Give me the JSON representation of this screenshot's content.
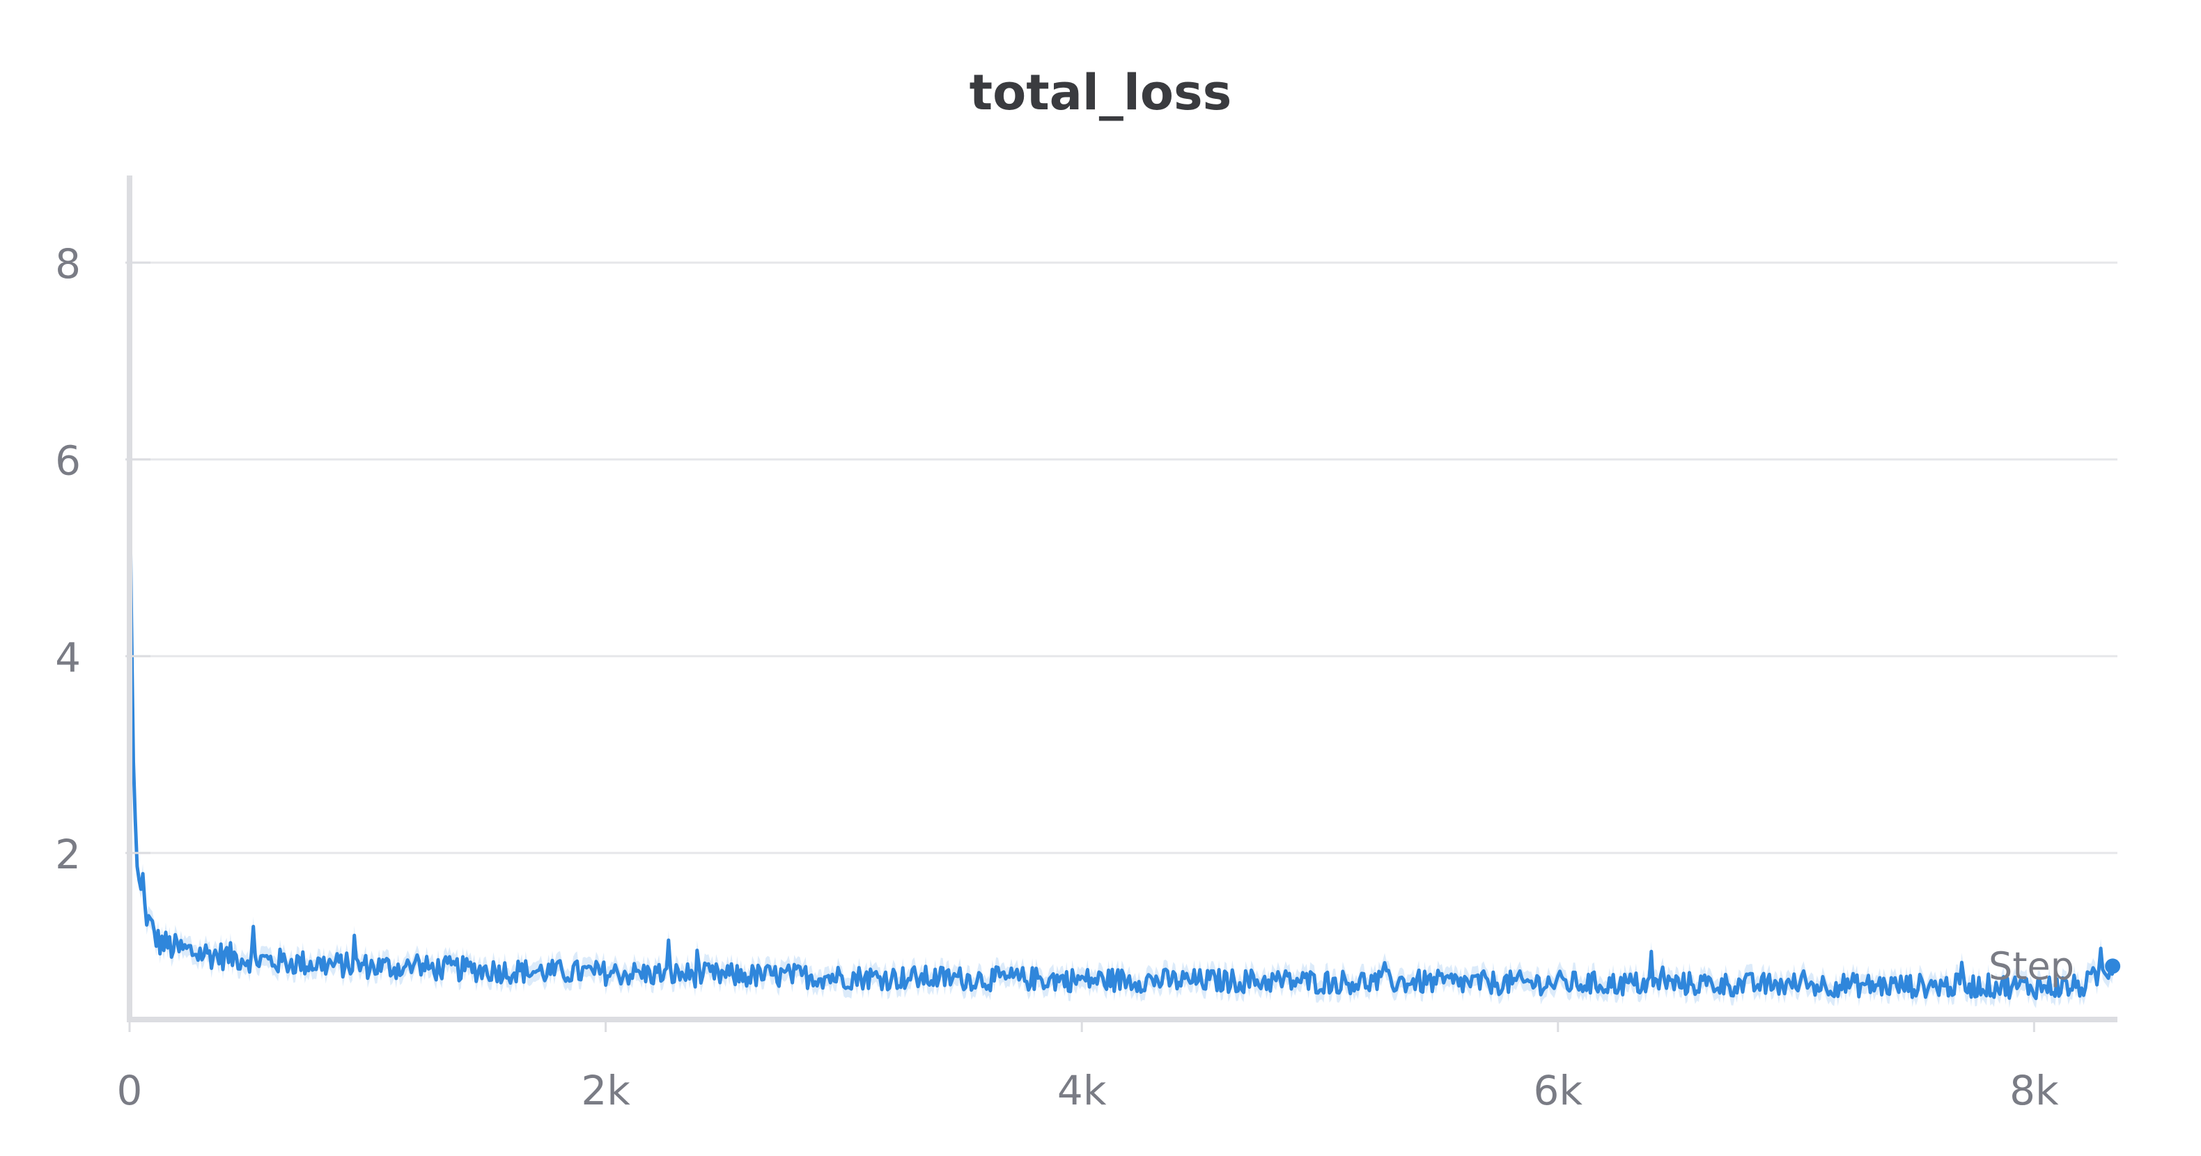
{
  "chart_data": {
    "type": "line",
    "title": "total_loss",
    "xlabel": "Step",
    "ylabel": "",
    "xlim": [
      0,
      8350
    ],
    "ylim": [
      0.35,
      8.9
    ],
    "x_ticks": [
      0,
      2000,
      4000,
      6000,
      8000
    ],
    "x_tick_labels": [
      "0",
      "2k",
      "4k",
      "6k",
      "8k"
    ],
    "y_ticks": [
      2,
      4,
      6,
      8
    ],
    "y_tick_labels": [
      "2",
      "4",
      "6",
      "8"
    ],
    "grid": true,
    "legend": "none",
    "series": [
      {
        "color": "#2f86db",
        "band_color": "#d3e6f9",
        "x": [
          0,
          15,
          30,
          50,
          80,
          120,
          200,
          300,
          450,
          600,
          800,
          1000,
          1200,
          1400,
          1600,
          1800,
          2000,
          2200,
          2400,
          2600,
          2800,
          3000,
          3200,
          3400,
          3600,
          3800,
          4000,
          4200,
          4400,
          4600,
          4800,
          5000,
          5200,
          5400,
          5600,
          5800,
          6000,
          6200,
          6400,
          6600,
          6800,
          7000,
          7200,
          7400,
          7600,
          7800,
          8000,
          8200,
          8330
        ],
        "values": [
          5.9,
          3.0,
          1.9,
          1.55,
          1.3,
          1.1,
          1.02,
          0.98,
          0.94,
          0.9,
          0.87,
          0.85,
          0.83,
          0.82,
          0.8,
          0.79,
          0.78,
          0.77,
          0.76,
          0.75,
          0.75,
          0.74,
          0.73,
          0.73,
          0.72,
          0.72,
          0.71,
          0.71,
          0.7,
          0.7,
          0.7,
          0.69,
          0.69,
          0.69,
          0.68,
          0.68,
          0.68,
          0.67,
          0.67,
          0.67,
          0.66,
          0.66,
          0.66,
          0.65,
          0.65,
          0.65,
          0.64,
          0.64,
          0.85
        ]
      }
    ]
  }
}
